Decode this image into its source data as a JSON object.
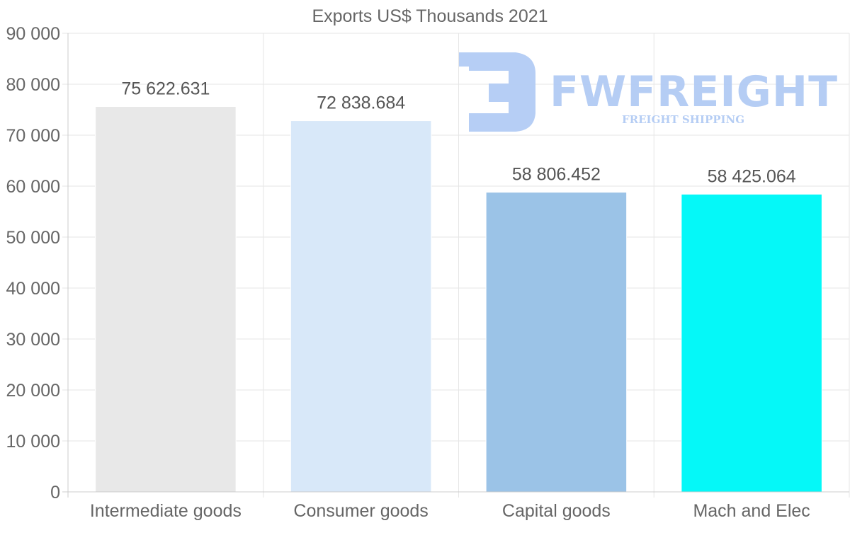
{
  "chart_data": {
    "type": "bar",
    "title": "Exports US$ Thousands 2021",
    "categories": [
      "Intermediate goods",
      "Consumer goods",
      "Capital goods",
      "Mach and Elec"
    ],
    "values": [
      75622.631,
      72838.684,
      58806.452,
      58425.064
    ],
    "value_labels": [
      "75 622.631",
      "72 838.684",
      "58 806.452",
      "58 425.064"
    ],
    "bar_colors": [
      "#e8e8e8",
      "#d8e8f9",
      "#9bc3e7",
      "#05f8f8"
    ],
    "ylim": [
      0,
      90000
    ],
    "yticks": [
      0,
      10000,
      20000,
      30000,
      40000,
      50000,
      60000,
      70000,
      80000,
      90000
    ],
    "ytick_labels": [
      "0",
      "10 000",
      "20 000",
      "30 000",
      "40 000",
      "50 000",
      "60 000",
      "70 000",
      "80 000",
      "90 000"
    ],
    "xlabel": "",
    "ylabel": "",
    "grid": true
  },
  "watermark": {
    "name": "FWFREIGHT",
    "tagline": "FREIGHT SHIPPING",
    "color": "#b2cbf4"
  }
}
